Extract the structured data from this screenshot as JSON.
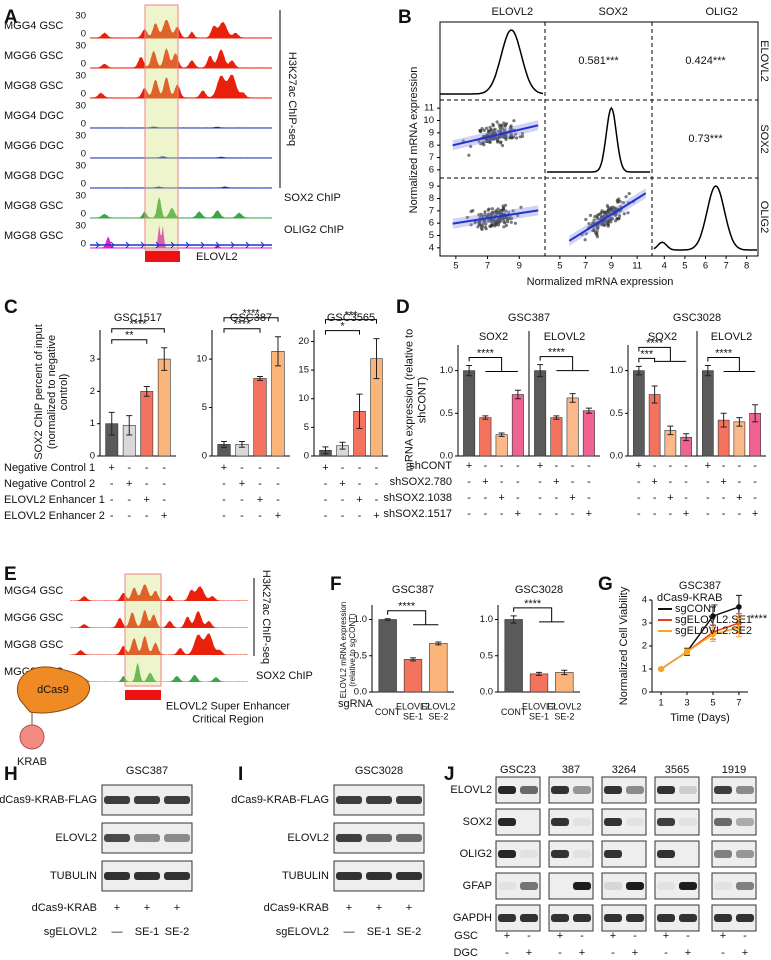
{
  "panel_labels": [
    "A",
    "B",
    "C",
    "D",
    "E",
    "F",
    "G",
    "H",
    "I",
    "J"
  ],
  "panel_a": {
    "y_max": 30,
    "y_min": 0,
    "tracks": [
      {
        "label": "MGG4 GSC",
        "color": "#e3261f",
        "fill": "#e8200c"
      },
      {
        "label": "MGG6 GSC",
        "color": "#e3261f",
        "fill": "#e8200c"
      },
      {
        "label": "MGG8 GSC",
        "color": "#e3261f",
        "fill": "#e8200c"
      },
      {
        "label": "MGG4 DGC",
        "color": "#2a2ad8",
        "fill": "#1d2bb0"
      },
      {
        "label": "MGG6 DGC",
        "color": "#2a2ad8",
        "fill": "#1d2bb0"
      },
      {
        "label": "MGG8 DGC",
        "color": "#2a2ad8",
        "fill": "#1d2bb0"
      },
      {
        "label": "MGG8 GSC",
        "color": "#222222",
        "fill": "#3aa64a"
      },
      {
        "label": "MGG8 GSC",
        "color": "#222222",
        "fill": "#e020d0"
      }
    ],
    "chipseq_label": "H3K27ac ChIP-seq",
    "sox2_label": "SOX2 ChIP",
    "olig2_label": "OLIG2 ChIP",
    "gene": "ELOVL2"
  },
  "panel_b": {
    "genes": [
      "ELOVL2",
      "SOX2",
      "OLIG2"
    ],
    "correlations": [
      "0.581***",
      "0.424***",
      "0.73***"
    ],
    "corr_color": "#f07070",
    "x_label": "Normalized mRNA expression",
    "y_label": "Normalized mRNA expression",
    "x_axes": [
      {
        "xlim": [
          4,
          10.5
        ],
        "xticks": [
          5,
          7,
          9
        ]
      },
      {
        "xlim": [
          4,
          12
        ],
        "xticks": [
          5,
          7,
          9,
          11
        ]
      },
      {
        "xlim": [
          3.5,
          8.5
        ],
        "xticks": [
          4,
          5,
          6,
          7,
          8
        ]
      }
    ],
    "y_axes": [
      {
        "ylim": [
          5.5,
          11.5
        ],
        "yticks": [
          6,
          7,
          8,
          9,
          10,
          11
        ]
      },
      {
        "ylim": [
          3.5,
          9.5
        ],
        "yticks": [
          4,
          5,
          6,
          7,
          8,
          9
        ]
      }
    ]
  },
  "chart_data": [
    {
      "type": "bar",
      "title": "GSC1517",
      "y_label": "SOX2 ChIP percent of input (normalized to negative control)",
      "colors": [
        "#5a5a5a",
        "#d9d9d9",
        "#f4735f",
        "#fbb47a"
      ],
      "ylim": [
        0,
        3.9
      ],
      "yticks": [
        0,
        1,
        2,
        3
      ],
      "brackets": "pairwise",
      "groups": [
        {
          "values": [
            1.0,
            0.95,
            2.0,
            3.0
          ],
          "errors": [
            0.35,
            0.3,
            0.15,
            0.35
          ],
          "significance": [
            "**",
            "****"
          ]
        }
      ]
    },
    {
      "type": "bar",
      "title": "GSC387",
      "colors": [
        "#5a5a5a",
        "#d9d9d9",
        "#f4735f",
        "#fbb47a"
      ],
      "ylim": [
        0,
        13
      ],
      "yticks": [
        0,
        5,
        10
      ],
      "brackets": "pairwise",
      "groups": [
        {
          "values": [
            1.2,
            1.2,
            8.0,
            10.8
          ],
          "errors": [
            0.3,
            0.3,
            0.2,
            1.5
          ],
          "significance": [
            "****",
            "****"
          ]
        }
      ]
    },
    {
      "type": "bar",
      "title": "GSC3565",
      "colors": [
        "#5a5a5a",
        "#d9d9d9",
        "#f4735f",
        "#fbb47a"
      ],
      "ylim": [
        0,
        22
      ],
      "yticks": [
        0,
        5,
        10,
        15,
        20
      ],
      "brackets": "pairwise",
      "groups": [
        {
          "values": [
            1.0,
            1.8,
            7.8,
            17.0
          ],
          "errors": [
            0.6,
            0.6,
            3.0,
            3.5
          ],
          "significance": [
            "*",
            "***"
          ]
        }
      ]
    },
    {
      "type": "bar",
      "title": "GSC387",
      "y_label": "mRNA expression (relative to shCONT)",
      "colors": [
        "#5a5a5a",
        "#f4735f",
        "#fbb98a",
        "#f06292"
      ],
      "ylim": [
        0,
        1.3
      ],
      "yticks": [
        {
          "value": 0,
          "label": "0.0"
        },
        0.5,
        {
          "value": 1,
          "label": "1.0"
        }
      ],
      "brackets": "versus-rest",
      "groups": [
        {
          "name": "SOX2",
          "values": [
            1.0,
            0.45,
            0.25,
            0.72
          ],
          "errors": [
            0.06,
            0.02,
            0.02,
            0.05
          ],
          "significance": [
            "****"
          ]
        },
        {
          "name": "ELOVL2",
          "values": [
            1.0,
            0.45,
            0.68,
            0.53
          ],
          "errors": [
            0.07,
            0.02,
            0.05,
            0.03
          ],
          "significance": [
            "****"
          ]
        }
      ]
    },
    {
      "type": "bar",
      "title": "GSC3028",
      "colors": [
        "#5a5a5a",
        "#f4735f",
        "#fbb98a",
        "#f06292"
      ],
      "ylim": [
        0,
        1.3
      ],
      "yticks": [
        {
          "value": 0,
          "label": "0.0"
        },
        0.5,
        {
          "value": 1,
          "label": "1.0"
        }
      ],
      "brackets": "versus-rest",
      "groups": [
        {
          "name": "SOX2",
          "values": [
            1.0,
            0.72,
            0.3,
            0.22
          ],
          "errors": [
            0.05,
            0.1,
            0.05,
            0.04
          ],
          "significance": [
            "***",
            "****"
          ]
        },
        {
          "name": "ELOVL2",
          "values": [
            1.0,
            0.42,
            0.4,
            0.5
          ],
          "errors": [
            0.06,
            0.08,
            0.05,
            0.1
          ],
          "significance": [
            "****"
          ]
        }
      ]
    },
    {
      "type": "bar",
      "title": "GSC387",
      "y_label": "ELOVL2 mRNA expression (relative to sgCONT)",
      "categories": [
        "CONT",
        "ELOVL2 SE-1",
        "ELOVL2 SE-2"
      ],
      "colors": [
        "#5a5a5a",
        "#f4735f",
        "#fbb47a"
      ],
      "ylim": [
        0,
        1.2
      ],
      "yticks": [
        {
          "value": 0,
          "label": "0.0"
        },
        0.5,
        {
          "value": 1,
          "label": "1.0"
        }
      ],
      "brackets": "versus-rest",
      "groups": [
        {
          "values": [
            1.0,
            0.45,
            0.67
          ],
          "errors": [
            0.01,
            0.02,
            0.02
          ],
          "significance": [
            "****"
          ]
        }
      ]
    },
    {
      "type": "bar",
      "title": "GSC3028",
      "categories": [
        "CONT",
        "ELOVL2 SE-1",
        "ELOVL2 SE-2"
      ],
      "colors": [
        "#5a5a5a",
        "#f4735f",
        "#fbb47a"
      ],
      "ylim": [
        0,
        1.2
      ],
      "yticks": [
        {
          "value": 0,
          "label": "0.0"
        },
        0.5,
        {
          "value": 1,
          "label": "1.0"
        }
      ],
      "brackets": "versus-rest",
      "groups": [
        {
          "values": [
            1.0,
            0.25,
            0.27
          ],
          "errors": [
            0.05,
            0.02,
            0.03
          ],
          "significance": [
            "****"
          ]
        }
      ]
    },
    {
      "type": "line",
      "title": "GSC387",
      "x": [
        1,
        3,
        5,
        7
      ],
      "xlim": [
        0.3,
        7.7
      ],
      "xticks": [
        1,
        3,
        5,
        7
      ],
      "ylim": [
        0,
        4
      ],
      "yticks": [
        0,
        1,
        2,
        3,
        4
      ],
      "x_label": "Time (Days)",
      "y_label": "Normalized Cell Viability",
      "legend_title": "dCas9-KRAB",
      "annotation": "****",
      "series": [
        {
          "name": "sgCONT",
          "color": "#111111",
          "values": [
            1.0,
            1.75,
            3.3,
            3.7
          ],
          "errors": [
            0.03,
            0.15,
            0.4,
            0.5
          ]
        },
        {
          "name": "sgELOVL2.SE1",
          "color": "#e8401c",
          "values": [
            1.0,
            1.75,
            2.6,
            3.0
          ],
          "errors": [
            0.03,
            0.12,
            0.3,
            0.4
          ]
        },
        {
          "name": "sgELOVL2.SE2",
          "color": "#f5a623",
          "values": [
            1.0,
            1.75,
            2.5,
            2.8
          ],
          "errors": [
            0.03,
            0.12,
            0.3,
            0.4
          ]
        }
      ]
    }
  ],
  "sgrna_label": "sgRNA",
  "conditions_c": {
    "rows": [
      {
        "label": "Negative Control 1",
        "signs": [
          "+",
          "-",
          "-",
          "-"
        ]
      },
      {
        "label": "Negative Control 2",
        "signs": [
          "-",
          "+",
          "-",
          "-"
        ]
      },
      {
        "label": "ELOVL2 Enhancer 1",
        "signs": [
          "-",
          "-",
          "+",
          "-"
        ]
      },
      {
        "label": "ELOVL2 Enhancer 2",
        "signs": [
          "-",
          "-",
          "-",
          "+"
        ]
      }
    ]
  },
  "conditions_d": {
    "rows": [
      {
        "label": "shCONT",
        "signs": [
          "+",
          "-",
          "-",
          "-"
        ]
      },
      {
        "label": "shSOX2.780",
        "signs": [
          "-",
          "+",
          "-",
          "-"
        ]
      },
      {
        "label": "shSOX2.1038",
        "signs": [
          "-",
          "-",
          "+",
          "-"
        ]
      },
      {
        "label": "shSOX2.1517",
        "signs": [
          "-",
          "-",
          "-",
          "+"
        ]
      }
    ]
  },
  "panel_e": {
    "tracks": [
      {
        "label": "MGG4 GSC",
        "color": "#e3261f",
        "fill": "#e8200c"
      },
      {
        "label": "MGG6 GSC",
        "color": "#e3261f",
        "fill": "#e8200c"
      },
      {
        "label": "MGG8 GSC",
        "color": "#e3261f",
        "fill": "#e8200c"
      },
      {
        "label": "MGG8 GSC",
        "color": "#222222",
        "fill": "#3aa64a"
      }
    ],
    "chipseq_label": "H3K27ac ChIP-seq",
    "sox2_label": "SOX2 ChIP",
    "dcas9": "dCas9",
    "krab": "KRAB",
    "region_label": "ELOVL2 Super Enhancer Critical Region"
  },
  "blot_h": {
    "title": "GSC387",
    "rows": [
      "dCas9-KRAB-FLAG",
      "ELOVL2",
      "TUBULIN"
    ],
    "treat1": {
      "label": "dCas9-KRAB",
      "signs": [
        "+",
        "+",
        "+"
      ]
    },
    "treat2": {
      "label": "sgELOVL2",
      "signs": [
        "—",
        "SE-1",
        "SE-2"
      ]
    }
  },
  "blot_i": {
    "title": "GSC3028",
    "rows": [
      "dCas9-KRAB-FLAG",
      "ELOVL2",
      "TUBULIN"
    ],
    "treat1": {
      "label": "dCas9-KRAB",
      "signs": [
        "+",
        "+",
        "+"
      ]
    },
    "treat2": {
      "label": "sgELOVL2",
      "signs": [
        "—",
        "SE-1",
        "SE-2"
      ]
    }
  },
  "blot_j": {
    "lines": [
      "GSC23",
      "387",
      "3264",
      "3565",
      "1919"
    ],
    "rows": [
      "ELOVL2",
      "SOX2",
      "OLIG2",
      "GFAP",
      "GAPDH"
    ],
    "treat1": {
      "label": "GSC",
      "signs": [
        "+",
        "-"
      ]
    },
    "treat2": {
      "label": "DGC",
      "signs": [
        "-",
        "+"
      ]
    }
  }
}
